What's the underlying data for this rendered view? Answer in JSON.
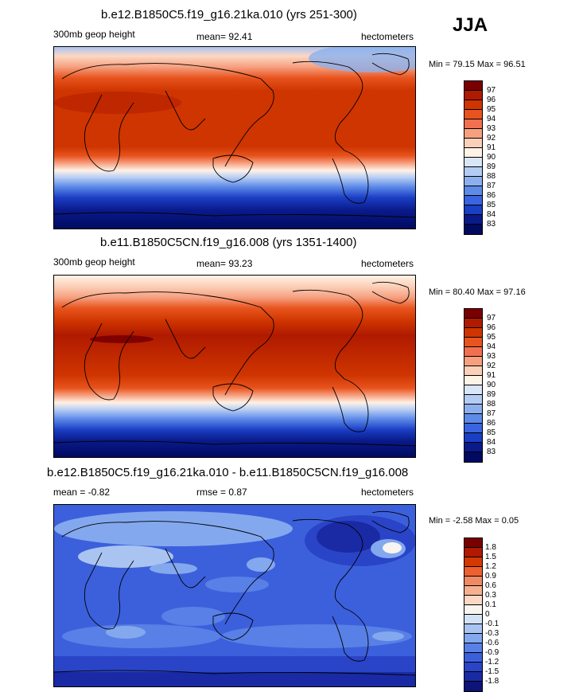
{
  "season": "JJA",
  "panels": [
    {
      "title": "b.e12.B1850C5.f19_g16.21ka.010 (yrs 251-300)",
      "left_label": "300mb geop height",
      "center_label": "mean=  92.41",
      "right_label": "hectometers",
      "minmax": "Min =  79.15 Max =  96.51",
      "colorbar": [
        "97",
        "96",
        "95",
        "94",
        "93",
        "92",
        "91",
        "90",
        "89",
        "88",
        "87",
        "86",
        "85",
        "84",
        "83"
      ]
    },
    {
      "title": "b.e11.B1850C5CN.f19_g16.008 (yrs 1351-1400)",
      "left_label": "300mb geop height",
      "center_label": "mean=  93.23",
      "right_label": "hectometers",
      "minmax": "Min =  80.40 Max =  97.16",
      "colorbar": [
        "97",
        "96",
        "95",
        "94",
        "93",
        "92",
        "91",
        "90",
        "89",
        "88",
        "87",
        "86",
        "85",
        "84",
        "83"
      ]
    },
    {
      "title": "b.e12.B1850C5.f19_g16.21ka.010 - b.e11.B1850C5CN.f19_g16.008",
      "left_label": "mean =  -0.82",
      "center_label": "rmse =   0.87",
      "right_label": "hectometers",
      "minmax": "Min =  -2.58 Max =   0.05",
      "colorbar": [
        "1.8",
        "1.5",
        "1.2",
        "0.9",
        "0.6",
        "0.3",
        "0.1",
        "0",
        "-0.1",
        "-0.3",
        "-0.6",
        "-0.9",
        "-1.2",
        "-1.5",
        "-1.8"
      ]
    }
  ],
  "colors": {
    "field_scale": [
      "#7a0000",
      "#b01a00",
      "#cf3500",
      "#e8541e",
      "#f07050",
      "#f6a080",
      "#fbd0b8",
      "#fff2e6",
      "#d8e6f8",
      "#b4ccf4",
      "#8cb0ee",
      "#5e8ae8",
      "#3a64e0",
      "#1a3ec4",
      "#0a1a8a",
      "#000a60"
    ],
    "diff_scale": [
      "#7a0000",
      "#b01a00",
      "#d43a00",
      "#ee6030",
      "#f08a64",
      "#f6b090",
      "#fcd8c4",
      "#f8f4f0",
      "#d4e2f8",
      "#aac4f2",
      "#84a8ee",
      "#5880e6",
      "#3c60dc",
      "#2a44c8",
      "#1a2aa4",
      "#0c1478"
    ]
  }
}
